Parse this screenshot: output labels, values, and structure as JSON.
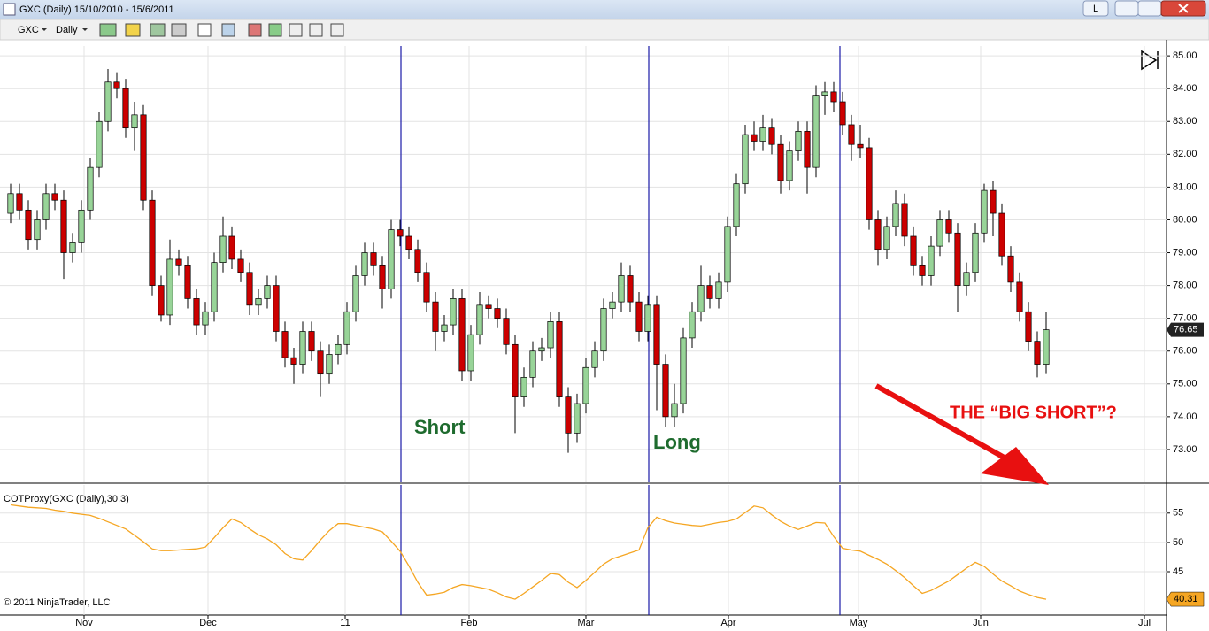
{
  "window": {
    "title": "GXC (Daily)  15/10/2010 - 15/6/2011",
    "button": "L",
    "instrument": "GXC",
    "interval": "Daily",
    "copyright": "© 2011 NinjaTrader, LLC"
  },
  "chart_data": [
    {
      "type": "candlestick",
      "open": [
        80.2,
        80.8,
        80.3,
        79.4,
        80.0,
        80.8,
        80.6,
        79.0,
        79.3,
        80.3,
        81.6,
        83.0,
        84.2,
        84.0,
        82.8,
        83.2,
        80.6,
        78.0,
        77.1,
        78.8,
        78.6,
        77.6,
        76.8,
        77.2,
        78.7,
        79.5,
        78.8,
        78.4,
        77.4,
        77.6,
        78.0,
        76.6,
        75.8,
        75.6,
        76.6,
        76.0,
        75.3,
        75.9,
        76.2,
        77.2,
        78.3,
        79.0,
        78.6,
        77.9,
        79.7,
        79.5,
        79.1,
        78.4,
        77.5,
        76.6,
        76.8,
        77.6,
        75.4,
        76.5,
        77.4,
        77.3,
        77.0,
        76.2,
        74.6,
        75.2,
        76.0,
        76.1,
        76.9,
        74.6,
        73.5,
        74.4,
        75.5,
        76.0,
        77.3,
        77.5,
        78.3,
        77.5,
        76.6,
        77.4,
        75.6,
        74.0,
        74.4,
        76.4,
        77.2,
        78.0,
        77.6,
        78.1,
        79.8,
        81.1,
        82.6,
        82.4,
        82.8,
        82.3,
        81.2,
        82.1,
        82.7,
        81.6,
        83.8,
        83.9,
        83.6,
        82.9,
        82.3,
        82.2,
        80.0,
        79.1,
        79.8,
        80.5,
        79.5,
        78.6,
        78.3,
        79.2,
        80.0,
        79.6,
        78.0,
        78.4,
        79.6,
        80.9,
        80.2,
        78.9,
        78.1,
        77.2,
        76.3,
        75.6
      ],
      "high": [
        81.1,
        81.1,
        80.6,
        80.3,
        81.1,
        81.1,
        80.9,
        79.6,
        80.6,
        81.9,
        83.3,
        84.6,
        84.5,
        84.3,
        83.6,
        83.5,
        80.9,
        78.3,
        79.4,
        79.1,
        78.9,
        77.9,
        77.5,
        79.0,
        80.1,
        79.8,
        79.1,
        78.7,
        77.9,
        78.3,
        78.3,
        76.9,
        76.1,
        76.9,
        76.9,
        76.3,
        76.2,
        76.5,
        77.5,
        78.6,
        79.3,
        79.3,
        78.9,
        80.0,
        80.0,
        79.8,
        79.4,
        78.7,
        77.8,
        77.1,
        77.9,
        77.9,
        76.8,
        77.8,
        77.7,
        77.6,
        77.3,
        76.5,
        75.5,
        76.3,
        76.4,
        77.2,
        77.2,
        74.9,
        74.7,
        75.8,
        76.3,
        77.6,
        77.8,
        78.7,
        78.6,
        77.8,
        77.7,
        77.7,
        75.9,
        75.0,
        76.7,
        77.5,
        78.6,
        78.3,
        78.4,
        80.1,
        81.4,
        82.9,
        83.0,
        83.2,
        83.1,
        82.6,
        82.4,
        83.0,
        83.0,
        84.1,
        84.2,
        84.2,
        83.9,
        83.2,
        82.9,
        82.5,
        80.3,
        80.1,
        80.9,
        80.8,
        79.8,
        78.9,
        79.5,
        80.3,
        80.3,
        79.9,
        78.7,
        79.9,
        81.1,
        81.2,
        80.5,
        79.2,
        78.4,
        77.5,
        76.6,
        77.2
      ],
      "low": [
        79.9,
        80.0,
        79.1,
        79.1,
        79.7,
        80.3,
        78.2,
        78.7,
        79.0,
        80.0,
        81.3,
        82.7,
        83.7,
        82.5,
        82.1,
        80.3,
        77.7,
        76.9,
        76.8,
        78.3,
        77.3,
        76.5,
        76.5,
        76.9,
        78.4,
        78.5,
        78.1,
        77.1,
        77.1,
        77.3,
        76.3,
        75.5,
        75.0,
        75.3,
        75.7,
        74.6,
        75.0,
        75.6,
        75.9,
        76.9,
        78.0,
        78.3,
        77.3,
        77.6,
        79.2,
        78.8,
        78.1,
        77.2,
        76.0,
        76.3,
        76.5,
        75.1,
        75.1,
        76.2,
        77.0,
        76.7,
        75.9,
        73.5,
        74.3,
        74.9,
        75.7,
        75.8,
        74.3,
        72.9,
        73.2,
        74.1,
        75.2,
        75.7,
        77.0,
        77.2,
        77.2,
        76.3,
        76.3,
        74.2,
        73.7,
        73.7,
        74.1,
        76.1,
        76.9,
        77.3,
        77.3,
        77.8,
        79.5,
        80.8,
        82.1,
        82.1,
        82.0,
        80.8,
        80.9,
        81.8,
        80.8,
        81.3,
        83.2,
        83.3,
        82.6,
        81.8,
        81.9,
        79.7,
        78.6,
        78.8,
        79.5,
        79.2,
        78.3,
        78.0,
        78.0,
        78.9,
        79.3,
        77.2,
        77.7,
        78.1,
        79.3,
        79.5,
        78.6,
        77.8,
        76.9,
        76.0,
        75.2,
        75.3
      ],
      "close": [
        80.8,
        80.3,
        79.4,
        80.0,
        80.8,
        80.6,
        79.0,
        79.3,
        80.3,
        81.6,
        83.0,
        84.2,
        84.0,
        82.8,
        83.2,
        80.6,
        78.0,
        77.1,
        78.8,
        78.6,
        77.6,
        76.8,
        77.2,
        78.7,
        79.5,
        78.8,
        78.4,
        77.4,
        77.6,
        78.0,
        76.6,
        75.8,
        75.6,
        76.6,
        76.0,
        75.3,
        75.9,
        76.2,
        77.2,
        78.3,
        79.0,
        78.6,
        77.9,
        79.7,
        79.5,
        79.1,
        78.4,
        77.5,
        76.6,
        76.8,
        77.6,
        75.4,
        76.5,
        77.4,
        77.3,
        77.0,
        76.2,
        74.6,
        75.2,
        76.0,
        76.1,
        76.9,
        74.6,
        73.5,
        74.4,
        75.5,
        76.0,
        77.3,
        77.5,
        78.3,
        77.5,
        76.6,
        77.4,
        75.6,
        74.0,
        74.4,
        76.4,
        77.2,
        78.0,
        77.6,
        78.1,
        79.8,
        81.1,
        82.6,
        82.4,
        82.8,
        82.3,
        81.2,
        82.1,
        82.7,
        81.6,
        83.8,
        83.9,
        83.6,
        82.9,
        82.3,
        82.2,
        80.0,
        79.1,
        79.8,
        80.5,
        79.5,
        78.6,
        78.3,
        79.2,
        80.0,
        79.6,
        78.0,
        78.4,
        79.6,
        80.9,
        80.2,
        78.9,
        78.1,
        77.2,
        76.3,
        75.6,
        76.65
      ],
      "up_color": "#98d498",
      "down_color": "#cc0000",
      "xlim": [
        -1.2,
        130.6
      ],
      "xticks": [
        {
          "value": 8.3,
          "label": "Nov"
        },
        {
          "value": 22.3,
          "label": "Dec"
        },
        {
          "value": 37.8,
          "label": "11"
        },
        {
          "value": 51.8,
          "label": "Feb"
        },
        {
          "value": 65,
          "label": "Mar"
        },
        {
          "value": 81.1,
          "label": "Apr"
        },
        {
          "value": 95.8,
          "label": "May"
        },
        {
          "value": 109.6,
          "label": "Jun"
        },
        {
          "value": 128.1,
          "label": "Jul"
        }
      ],
      "ylim": [
        72.0,
        85.3
      ],
      "yticks": [
        {
          "value": 73,
          "label": "73.00"
        },
        {
          "value": 74,
          "label": "74.00"
        },
        {
          "value": 75,
          "label": "75.00"
        },
        {
          "value": 76,
          "label": "76.00"
        },
        {
          "value": 77,
          "label": "77.00"
        },
        {
          "value": 78,
          "label": "78.00"
        },
        {
          "value": 79,
          "label": "79.00"
        },
        {
          "value": 80,
          "label": "80.00"
        },
        {
          "value": 81,
          "label": "81.00"
        },
        {
          "value": 82,
          "label": "82.00"
        },
        {
          "value": 83,
          "label": "83.00"
        },
        {
          "value": 84,
          "label": "84.00"
        },
        {
          "value": 85,
          "label": "85.00"
        }
      ],
      "grid": true,
      "events": [
        44.1,
        72.1,
        93.7
      ],
      "event_color": "#1a1aa8",
      "annotations": [
        "Short",
        "Long",
        "THE “BIG SHORT”?"
      ]
    },
    {
      "type": "line",
      "title": "COTProxy(GXC (Daily),30,3)",
      "color": "#f5a623",
      "values": [
        56.4,
        56.2,
        56.0,
        55.9,
        55.8,
        55.5,
        55.3,
        55.0,
        54.8,
        54.6,
        54.1,
        53.5,
        52.9,
        52.3,
        51.2,
        50.1,
        48.9,
        48.6,
        48.6,
        48.7,
        48.8,
        48.9,
        49.2,
        50.8,
        52.5,
        54.0,
        53.4,
        52.3,
        51.3,
        50.6,
        49.6,
        48.1,
        47.2,
        47.0,
        48.6,
        50.4,
        52.0,
        53.2,
        53.2,
        52.9,
        52.6,
        52.3,
        51.8,
        50.2,
        48.5,
        46.0,
        43.2,
        41.0,
        41.2,
        41.5,
        42.3,
        42.8,
        42.6,
        42.3,
        42.0,
        41.4,
        40.7,
        40.3,
        41.3,
        42.4,
        43.5,
        44.7,
        44.5,
        43.2,
        42.3,
        43.5,
        44.9,
        46.3,
        47.2,
        47.7,
        48.2,
        48.7,
        52.5,
        54.3,
        53.7,
        53.3,
        53.1,
        52.9,
        52.8,
        53.1,
        53.4,
        53.6,
        54.0,
        55.1,
        56.2,
        55.9,
        54.7,
        53.6,
        52.8,
        52.2,
        52.8,
        53.4,
        53.3,
        51.0,
        49.0,
        48.7,
        48.5,
        47.8,
        47.1,
        46.3,
        45.2,
        44.0,
        42.6,
        41.3,
        41.8,
        42.6,
        43.4,
        44.5,
        45.6,
        46.6,
        45.9,
        44.6,
        43.4,
        42.6,
        41.7,
        41.1,
        40.6,
        40.31
      ],
      "ylim": [
        37.6,
        59.8
      ],
      "yticks": [
        45,
        50,
        55
      ],
      "grid": true
    }
  ]
}
